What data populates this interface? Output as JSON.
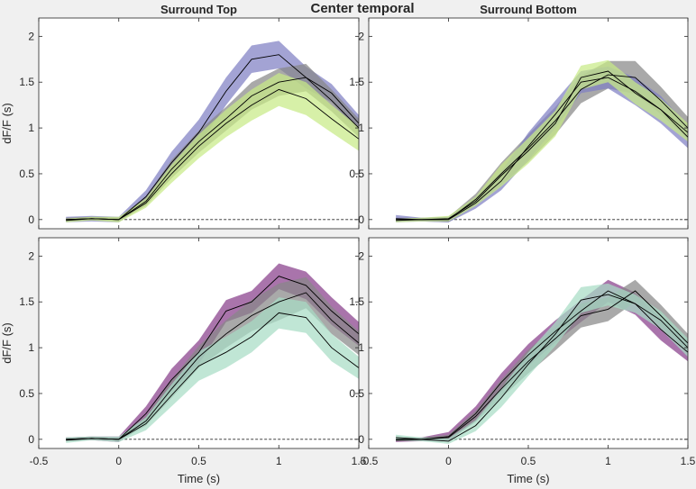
{
  "figure_title": "Center temporal",
  "chart_data": [
    {
      "type": "line",
      "title": "Surround Top",
      "xlabel": "",
      "ylabel": "dF/F (s)",
      "xlim": [
        -0.5,
        1.5
      ],
      "ylim": [
        -0.1,
        2.2
      ],
      "xticks": [
        "-0.5",
        "0",
        "0.5",
        "1",
        "1.5"
      ],
      "yticks": [
        "0",
        "0.5",
        "1",
        "1.5",
        "2"
      ],
      "show_xticklabels": false,
      "x": [
        -0.33,
        -0.17,
        0,
        0.17,
        0.33,
        0.5,
        0.67,
        0.83,
        1,
        1.17,
        1.33,
        1.5
      ],
      "series": [
        {
          "color": "#7f7fc4",
          "mean": [
            0,
            0.01,
            0,
            0.25,
            0.62,
            0.95,
            1.4,
            1.75,
            1.8,
            1.55,
            1.38,
            1.05
          ],
          "err": [
            0.03,
            0.03,
            0.03,
            0.07,
            0.12,
            0.14,
            0.15,
            0.15,
            0.15,
            0.12,
            0.1,
            0.09
          ]
        },
        {
          "color": "#888888",
          "mean": [
            0,
            0.01,
            0,
            0.2,
            0.55,
            0.85,
            1.1,
            1.35,
            1.5,
            1.55,
            1.3,
            1.0
          ],
          "err": [
            0.02,
            0.02,
            0.02,
            0.05,
            0.1,
            0.12,
            0.13,
            0.15,
            0.15,
            0.15,
            0.12,
            0.1
          ]
        },
        {
          "color": "#c8ea86",
          "mean": [
            -0.01,
            0.01,
            0,
            0.18,
            0.5,
            0.8,
            1.05,
            1.25,
            1.42,
            1.32,
            1.1,
            0.88
          ],
          "err": [
            0.02,
            0.02,
            0.03,
            0.05,
            0.1,
            0.13,
            0.15,
            0.17,
            0.18,
            0.18,
            0.15,
            0.13
          ]
        }
      ]
    },
    {
      "type": "line",
      "title": "Surround Bottom",
      "xlabel": "",
      "ylabel": "",
      "xlim": [
        -0.5,
        1.5
      ],
      "ylim": [
        -0.1,
        2.2
      ],
      "xticks": [
        "-0.5",
        "0",
        "0.5",
        "1",
        "1.5"
      ],
      "yticks": [
        "0",
        "0.5",
        "1",
        "1.5",
        "2"
      ],
      "show_xticklabels": false,
      "x": [
        -0.33,
        -0.17,
        0,
        0.17,
        0.33,
        0.5,
        0.67,
        0.83,
        1,
        1.17,
        1.33,
        1.5
      ],
      "series": [
        {
          "color": "#888888",
          "mean": [
            0,
            0,
            0,
            0.22,
            0.5,
            0.78,
            1.08,
            1.42,
            1.58,
            1.55,
            1.3,
            1.0
          ],
          "err": [
            0.02,
            0.02,
            0.03,
            0.06,
            0.12,
            0.15,
            0.15,
            0.15,
            0.15,
            0.18,
            0.15,
            0.12
          ]
        },
        {
          "color": "#7f7fc4",
          "mean": [
            0.01,
            0,
            0,
            0.18,
            0.42,
            0.8,
            1.15,
            1.5,
            1.55,
            1.4,
            1.2,
            0.9
          ],
          "err": [
            0.04,
            0.02,
            0.03,
            0.06,
            0.1,
            0.15,
            0.15,
            0.12,
            0.12,
            0.15,
            0.15,
            0.12
          ]
        },
        {
          "color": "#c8ea86",
          "mean": [
            -0.01,
            0,
            0.01,
            0.2,
            0.48,
            0.75,
            1.05,
            1.55,
            1.62,
            1.38,
            1.2,
            0.95
          ],
          "err": [
            0.02,
            0.02,
            0.03,
            0.05,
            0.12,
            0.14,
            0.14,
            0.13,
            0.12,
            0.12,
            0.12,
            0.1
          ]
        }
      ]
    },
    {
      "type": "line",
      "title": "",
      "xlabel": "Time (s)",
      "ylabel": "dF/F (s)",
      "xlim": [
        -0.5,
        1.5
      ],
      "ylim": [
        -0.1,
        2.2
      ],
      "xticks": [
        "-0.5",
        "0",
        "0.5",
        "1",
        "1.5"
      ],
      "yticks": [
        "0",
        "0.5",
        "1",
        "1.5",
        "2"
      ],
      "show_xticklabels": true,
      "x": [
        -0.33,
        -0.17,
        0,
        0.17,
        0.33,
        0.5,
        0.67,
        0.83,
        1,
        1.17,
        1.33,
        1.5
      ],
      "series": [
        {
          "color": "#883f8a",
          "mean": [
            0,
            0.01,
            0,
            0.28,
            0.65,
            0.95,
            1.4,
            1.5,
            1.78,
            1.68,
            1.4,
            1.15
          ],
          "err": [
            0.02,
            0.02,
            0.03,
            0.08,
            0.12,
            0.13,
            0.12,
            0.12,
            0.14,
            0.15,
            0.15,
            0.13
          ]
        },
        {
          "color": "#888888",
          "mean": [
            0,
            0.01,
            0,
            0.2,
            0.55,
            0.9,
            1.15,
            1.35,
            1.5,
            1.6,
            1.3,
            1.05
          ],
          "err": [
            0.02,
            0.02,
            0.02,
            0.05,
            0.1,
            0.12,
            0.15,
            0.17,
            0.2,
            0.17,
            0.15,
            0.13
          ]
        },
        {
          "color": "#a8ddc5",
          "mean": [
            -0.01,
            0.01,
            0,
            0.17,
            0.48,
            0.8,
            0.95,
            1.12,
            1.38,
            1.33,
            1.0,
            0.78
          ],
          "err": [
            0.03,
            0.02,
            0.03,
            0.07,
            0.12,
            0.16,
            0.17,
            0.17,
            0.17,
            0.17,
            0.15,
            0.12
          ]
        }
      ]
    },
    {
      "type": "line",
      "title": "",
      "xlabel": "Time (s)",
      "ylabel": "",
      "xlim": [
        -0.5,
        1.5
      ],
      "ylim": [
        -0.1,
        2.2
      ],
      "xticks": [
        "-0.5",
        "0",
        "0.5",
        "1",
        "1.5"
      ],
      "yticks": [
        "0",
        "0.5",
        "1",
        "1.5",
        "2"
      ],
      "show_xticklabels": true,
      "x": [
        -0.33,
        -0.17,
        0,
        0.17,
        0.33,
        0.5,
        0.67,
        0.83,
        1,
        1.17,
        1.33,
        1.5
      ],
      "series": [
        {
          "color": "#883f8a",
          "mean": [
            -0.01,
            0,
            0.03,
            0.28,
            0.62,
            0.92,
            1.18,
            1.4,
            1.62,
            1.48,
            1.2,
            0.95
          ],
          "err": [
            0.02,
            0.02,
            0.05,
            0.08,
            0.1,
            0.12,
            0.12,
            0.12,
            0.12,
            0.12,
            0.12,
            0.1
          ]
        },
        {
          "color": "#888888",
          "mean": [
            0,
            0,
            0.02,
            0.25,
            0.55,
            0.85,
            1.1,
            1.35,
            1.42,
            1.62,
            1.35,
            1.05
          ],
          "err": [
            0.02,
            0.02,
            0.03,
            0.06,
            0.1,
            0.13,
            0.13,
            0.13,
            0.13,
            0.12,
            0.12,
            0.1
          ]
        },
        {
          "color": "#a8ddc5",
          "mean": [
            0.02,
            0,
            -0.02,
            0.15,
            0.45,
            0.82,
            1.15,
            1.52,
            1.58,
            1.48,
            1.3,
            1.0
          ],
          "err": [
            0.03,
            0.02,
            0.03,
            0.06,
            0.1,
            0.13,
            0.13,
            0.14,
            0.12,
            0.1,
            0.1,
            0.1
          ]
        }
      ]
    }
  ]
}
